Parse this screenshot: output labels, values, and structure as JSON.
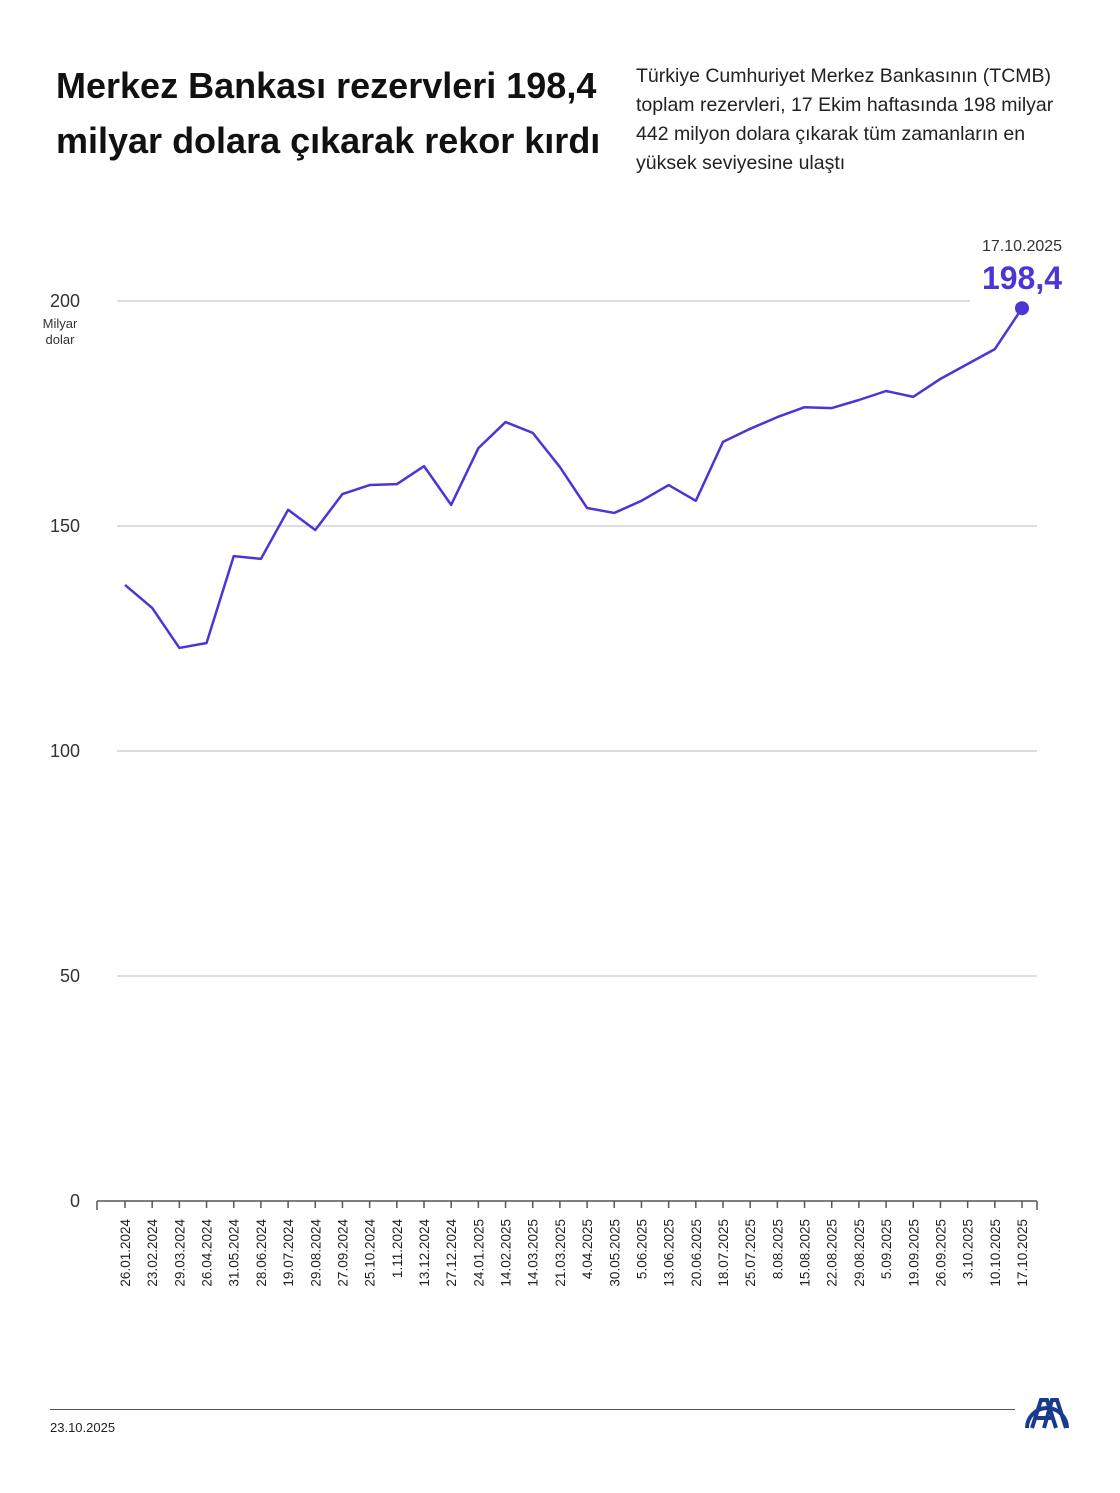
{
  "header": {
    "title": "Merkez Bankası rezervleri 198,4 milyar dolara çıkarak rekor kırdı",
    "subtitle": "Türkiye Cumhuriyet Merkez Bankasının (TCMB) toplam rezervleri, 17 Ekim haftasında 198 milyar 442 milyon dolara çıkarak tüm zamanların en yüksek seviyesine ulaştı"
  },
  "footer": {
    "date": "23.10.2025",
    "logo": "AA"
  },
  "colors": {
    "line": "#4a35d6",
    "logo": "#1a3a8c",
    "grid": "#bbbbbb"
  },
  "chart_data": {
    "type": "line",
    "ylabel": "Milyar dolar",
    "ylabel_lines": [
      "Milyar",
      "dolar"
    ],
    "ylim": [
      0,
      200
    ],
    "yticks": [
      0,
      50,
      100,
      150,
      200
    ],
    "grid": true,
    "categories": [
      "26.01.2024",
      "23.02.2024",
      "29.03.2024",
      "26.04.2024",
      "31.05.2024",
      "28.06.2024",
      "19.07.2024",
      "29.08.2024",
      "27.09.2024",
      "25.10.2024",
      "1.11.2024",
      "13.12.2024",
      "27.12.2024",
      "24.01.2025",
      "14.02.2025",
      "14.03.2025",
      "21.03.2025",
      "4.04.2025",
      "30.05.2025",
      "5.06.2025",
      "13.06.2025",
      "20.06.2025",
      "18.07.2025",
      "25.07.2025",
      "8.08.2025",
      "15.08.2025",
      "22.08.2025",
      "29.08.2025",
      "5.09.2025",
      "19.09.2025",
      "26.09.2025",
      "3.10.2025",
      "10.10.2025",
      "17.10.2025"
    ],
    "values": [
      136.9,
      131.8,
      122.9,
      124.0,
      143.3,
      142.7,
      153.6,
      149.1,
      157.1,
      159.1,
      159.3,
      163.3,
      154.7,
      167.3,
      173.1,
      170.7,
      163.1,
      154.0,
      152.9,
      155.6,
      159.1,
      155.6,
      168.7,
      171.6,
      174.2,
      176.4,
      176.2,
      178.0,
      180.0,
      178.7,
      182.7,
      186.0,
      189.3,
      198.4
    ],
    "annotation": {
      "date": "17.10.2025",
      "value": "198,4"
    }
  }
}
